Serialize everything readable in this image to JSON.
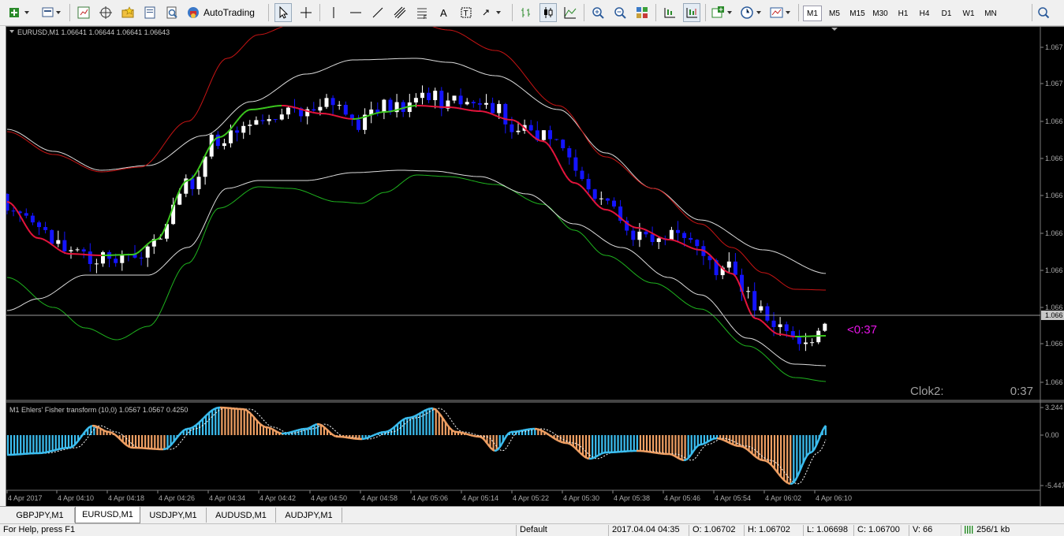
{
  "toolbar": {
    "autotrading_label": "AutoTrading",
    "timeframes": [
      "M1",
      "M5",
      "M15",
      "M30",
      "H1",
      "H4",
      "D1",
      "W1",
      "MN"
    ],
    "active_timeframe": "M1"
  },
  "chart": {
    "header": "EURUSD,M1  1.06641 1.06644 1.06641 1.06643",
    "price_labels": [
      "1.067",
      "1.067",
      "1.066",
      "1.066",
      "1.066",
      "1.066",
      "1.066",
      "1.066",
      "1.066",
      "1.066"
    ],
    "bid_label": "1.066",
    "countdown": "<0:37",
    "clock_label": "Clok2:",
    "clock_value": "0:37",
    "indicator_header": "M1 Ehlers' Fisher transform (10,0) 1.0567 1.0567 0.4250",
    "indicator_levels": [
      "3.244",
      "0.00",
      "-5.447"
    ],
    "time_labels": [
      "4 Apr 2017",
      "4 Apr 04:10",
      "4 Apr 04:18",
      "4 Apr 04:26",
      "4 Apr 04:34",
      "4 Apr 04:42",
      "4 Apr 04:50",
      "4 Apr 04:58",
      "4 Apr 05:06",
      "4 Apr 05:14",
      "4 Apr 05:22",
      "4 Apr 05:30",
      "4 Apr 05:38",
      "4 Apr 05:46",
      "4 Apr 05:54",
      "4 Apr 06:02",
      "4 Apr 06:10"
    ],
    "colors": {
      "bull": "#ffffff",
      "bear": "#1414ff",
      "ma_up": "#3cc81e",
      "ma_down": "#e6143c",
      "env_upper": "#c81414",
      "env_lower": "#1eb41e",
      "env_mid": "#dcdcdc",
      "fisher_pos": "#3cbef0",
      "fisher_neg": "#f0a064",
      "countdown": "#e614e6"
    }
  },
  "tabs": [
    {
      "label": "GBPJPY,M1",
      "active": false
    },
    {
      "label": "EURUSD,M1",
      "active": true
    },
    {
      "label": "USDJPY,M1",
      "active": false
    },
    {
      "label": "AUDUSD,M1",
      "active": false
    },
    {
      "label": "AUDJPY,M1",
      "active": false
    }
  ],
  "status": {
    "help": "For Help, press F1",
    "profile": "Default",
    "datetime": "2017.04.04 04:35",
    "open": "O: 1.06702",
    "high": "H: 1.06702",
    "low": "L: 1.06698",
    "close": "C: 1.06700",
    "volume": "V: 66",
    "traffic": "256/1 kb"
  }
}
